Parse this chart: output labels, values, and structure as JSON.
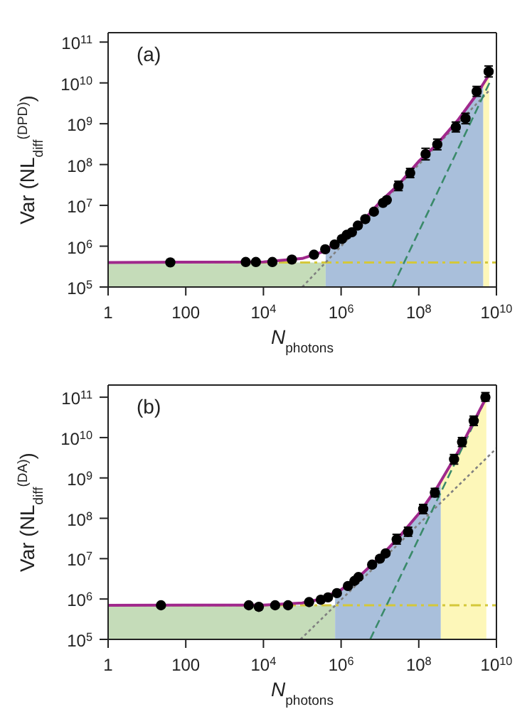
{
  "chart_data": [
    {
      "type": "scatter",
      "title": "(a)",
      "xlabel": "N$_{photons}$",
      "ylabel": "Var (NL$_{diff}$$^{(DPD)}$)",
      "log": "xy",
      "grid": false,
      "legend": false,
      "xlim": [
        1,
        10000000000
      ],
      "ylim": [
        100000,
        170000000000
      ],
      "xticks": [
        {
          "value": 1,
          "label": "1"
        },
        {
          "value": 100,
          "label": "100"
        },
        {
          "value": 10000,
          "label": "10$^{4}$"
        },
        {
          "value": 1000000,
          "label": "10$^{6}$"
        },
        {
          "value": 100000000,
          "label": "10$^{8}$"
        },
        {
          "value": 10000000000,
          "label": "10$^{10}$"
        }
      ],
      "yticks": [
        {
          "value": 100000,
          "label": "10$^{5}$"
        },
        {
          "value": 1000000,
          "label": "10$^{6}$"
        },
        {
          "value": 10000000,
          "label": "10$^{7}$"
        },
        {
          "value": 100000000,
          "label": "10$^{8}$"
        },
        {
          "value": 1000000000,
          "label": "10$^{9}$"
        },
        {
          "value": 10000000000,
          "label": "10$^{10}$"
        },
        {
          "value": 100000000000,
          "label": "10$^{11}$"
        }
      ],
      "ref_lines": [
        {
          "axis": "y",
          "value": 400000,
          "color": "#d4c83a",
          "line_style": "dashed"
        }
      ],
      "series": [
        {
          "type": "area",
          "color": "#c5dcb9",
          "x": [
            1,
            400000
          ],
          "values": [
            400000,
            400000
          ]
        },
        {
          "type": "area",
          "color": "#a9bfdb",
          "x": [
            400000,
            1000000,
            3000000,
            10000000,
            30000000,
            100000000,
            300000000,
            1000000000,
            3000000000,
            4600000000
          ],
          "values": [
            790000,
            1400000,
            3400000,
            12000000,
            32000000,
            120000000,
            320000000,
            1200000000,
            5000000000,
            9400000000
          ]
        },
        {
          "type": "area",
          "color": "#fdf7b9",
          "x": [
            4600000000,
            6500000000
          ],
          "values": [
            9400000000,
            16000000000
          ]
        },
        {
          "type": "line",
          "color": "#808080",
          "line_style": "dotted",
          "x": [
            100000,
            7000000000
          ],
          "values": [
            100000,
            7000000000
          ]
        },
        {
          "type": "line",
          "color": "#3a8a6a",
          "line_style": "dashed",
          "x": [
            21000000,
            6600000000
          ],
          "values": [
            100000,
            10000000000
          ]
        },
        {
          "type": "line",
          "color": "#a0288c",
          "line_style": "solid",
          "x": [
            1,
            10000,
            100000,
            300000,
            1000000,
            3000000,
            10000000,
            30000000,
            100000000,
            300000000,
            1000000000,
            3000000000,
            7000000000
          ],
          "values": [
            400000,
            410000,
            500000,
            700000,
            1400000,
            3400000,
            12000000,
            32000000,
            120000000,
            320000000,
            1200000000,
            5000000000,
            18000000000
          ]
        },
        {
          "type": "scatter",
          "marker": "circle",
          "color": "#000000",
          "x": [
            40,
            3500,
            6400,
            17000,
            54000,
            200000,
            390000,
            680000,
            1050000,
            1400000,
            1900000,
            2700000,
            4200000,
            7000000,
            12000000,
            15000000,
            30000000,
            60000000,
            150000000,
            300000000,
            900000000,
            1600000000,
            3100000000,
            6300000000
          ],
          "values": [
            400000,
            410000,
            410000,
            410000,
            470000,
            620000,
            840000,
            1100000,
            1500000,
            1900000,
            2200000,
            3200000,
            4600000,
            7000000,
            11500000,
            13500000,
            30000000,
            62000000,
            180000000,
            310000000,
            830000000,
            1350000000,
            6200000000,
            19000000000
          ],
          "errors": [
            null,
            null,
            null,
            null,
            null,
            null,
            null,
            null,
            null,
            null,
            null,
            null,
            null,
            null,
            null,
            null,
            [
              23000000,
              39000000
            ],
            [
              48000000,
              80000000
            ],
            [
              130000000,
              250000000
            ],
            [
              230000000,
              420000000
            ],
            [
              630000000,
              1100000000
            ],
            [
              1000000000,
              1800000000
            ],
            [
              4700000000,
              8200000000
            ],
            [
              14000000000,
              26000000000
            ]
          ]
        }
      ]
    },
    {
      "type": "scatter",
      "title": "(b)",
      "xlabel": "N$_{photons}$",
      "ylabel": "Var (NL$_{diff}$$^{(DA)}$)",
      "log": "xy",
      "grid": false,
      "legend": false,
      "xlim": [
        1,
        10000000000
      ],
      "ylim": [
        100000,
        200000000000
      ],
      "xticks": [
        {
          "value": 1,
          "label": "1"
        },
        {
          "value": 100,
          "label": "100"
        },
        {
          "value": 10000,
          "label": "10$^{4}$"
        },
        {
          "value": 1000000,
          "label": "10$^{6}$"
        },
        {
          "value": 100000000,
          "label": "10$^{8}$"
        },
        {
          "value": 10000000000,
          "label": "10$^{10}$"
        }
      ],
      "yticks": [
        {
          "value": 100000,
          "label": "10$^{5}$"
        },
        {
          "value": 1000000,
          "label": "10$^{6}$"
        },
        {
          "value": 10000000,
          "label": "10$^{7}$"
        },
        {
          "value": 100000000,
          "label": "10$^{8}$"
        },
        {
          "value": 1000000000,
          "label": "10$^{9}$"
        },
        {
          "value": 10000000000,
          "label": "10$^{10}$"
        },
        {
          "value": 100000000000,
          "label": "10$^{11}$"
        }
      ],
      "ref_lines": [
        {
          "axis": "y",
          "value": 700000,
          "color": "#d4c83a",
          "line_style": "dashed"
        }
      ],
      "series": [
        {
          "type": "area",
          "color": "#c5dcb9",
          "x": [
            1,
            700000
          ],
          "values": [
            700000,
            700000
          ]
        },
        {
          "type": "area",
          "color": "#a9bfdb",
          "x": [
            700000,
            1000000,
            3000000,
            10000000,
            30000000,
            100000000,
            370000000
          ],
          "values": [
            1400000,
            1700000,
            3700000,
            11000000,
            33000000,
            130000000,
            810000000
          ]
        },
        {
          "type": "area",
          "color": "#fdf7b9",
          "x": [
            370000000,
            1000000000,
            3000000000,
            5500000000
          ],
          "values": [
            810000000,
            4200000000,
            32000000000,
            100000000000
          ]
        },
        {
          "type": "line",
          "color": "#808080",
          "line_style": "dotted",
          "x": [
            90000,
            10000000000
          ],
          "values": [
            100000,
            5400000000
          ]
        },
        {
          "type": "line",
          "color": "#3a8a6a",
          "line_style": "dashed",
          "x": [
            5600000,
            5200000000
          ],
          "values": [
            100000,
            87000000000
          ]
        },
        {
          "type": "line",
          "color": "#a0288c",
          "line_style": "solid",
          "x": [
            1,
            10000,
            100000,
            300000,
            1000000,
            3000000,
            10000000,
            30000000,
            100000000,
            300000000,
            1000000000,
            3000000000,
            5500000000
          ],
          "values": [
            700000,
            710000,
            800000,
            1000000,
            1700000,
            3700000,
            11000000,
            33000000,
            130000000,
            590000000,
            4200000000,
            32000000000,
            100000000000
          ]
        },
        {
          "type": "scatter",
          "marker": "circle",
          "color": "#000000",
          "x": [
            23,
            4200,
            7600,
            20000,
            43000,
            150000,
            300000,
            460000,
            780000,
            1500000,
            2200000,
            2800000,
            6300000,
            10000000,
            14000000,
            27000000,
            53000000,
            130000000,
            260000000,
            810000000,
            1300000000,
            2600000000,
            5200000000
          ],
          "values": [
            700000,
            700000,
            640000,
            700000,
            700000,
            840000,
            960000,
            1100000,
            1400000,
            2100000,
            2800000,
            3500000,
            7100000,
            10000000,
            13500000,
            30000000,
            46000000,
            170000000,
            430000000,
            2900000000,
            7800000000,
            26000000000,
            100000000000
          ],
          "errors": [
            null,
            null,
            null,
            null,
            null,
            null,
            null,
            null,
            null,
            null,
            null,
            null,
            null,
            null,
            null,
            [
              23000000,
              40000000
            ],
            [
              36000000,
              60000000
            ],
            [
              130000000,
              220000000
            ],
            [
              340000000,
              550000000
            ],
            [
              2200000000,
              3800000000
            ],
            [
              6000000000,
              10000000000
            ],
            [
              20000000000,
              34000000000
            ],
            [
              80000000000,
              130000000000
            ]
          ]
        }
      ]
    }
  ]
}
